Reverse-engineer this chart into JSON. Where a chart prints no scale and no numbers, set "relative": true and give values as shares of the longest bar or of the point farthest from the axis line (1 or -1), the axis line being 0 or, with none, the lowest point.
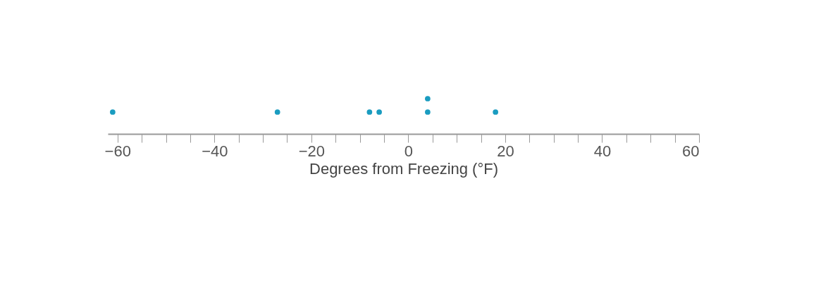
{
  "chart_data": {
    "type": "scatter",
    "relative": true,
    "xlabel": "Degrees from Freezing (°F)",
    "x": [
      -61,
      -27,
      -8,
      -6,
      4,
      4,
      18
    ],
    "series": [
      {
        "color": "#1a9cc0",
        "values": [
          0.62,
          0.62,
          0.62,
          0.62,
          0.62,
          1,
          0.62
        ]
      }
    ],
    "xlim": [
      -62,
      60
    ],
    "xticks": [
      -60,
      {
        "value": -55,
        "label": null
      },
      {
        "value": -50,
        "label": null
      },
      {
        "value": -45,
        "label": null
      },
      -40,
      {
        "value": -35,
        "label": null
      },
      {
        "value": -30,
        "label": null
      },
      {
        "value": -25,
        "label": null
      },
      -20,
      {
        "value": -15,
        "label": null
      },
      {
        "value": -10,
        "label": null
      },
      {
        "value": -5,
        "label": null
      },
      0,
      {
        "value": 5,
        "label": null
      },
      {
        "value": 10,
        "label": null
      },
      {
        "value": 15,
        "label": null
      },
      20,
      {
        "value": 25,
        "label": null
      },
      {
        "value": 30,
        "label": null
      },
      {
        "value": 35,
        "label": null
      },
      40,
      {
        "value": 45,
        "label": null
      },
      {
        "value": 50,
        "label": null
      },
      {
        "value": 55,
        "label": null
      },
      60
    ],
    "marker": "circle",
    "grid": false
  }
}
